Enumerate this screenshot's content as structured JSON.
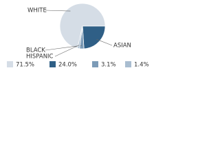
{
  "chart_data": {
    "type": "pie",
    "categories": [
      "WHITE",
      "ASIAN",
      "BLACK",
      "HISPANIC"
    ],
    "values": [
      71.5,
      24.0,
      3.1,
      1.4
    ],
    "value_labels": [
      "71.5%",
      "24.0%",
      "3.1%",
      "1.4%"
    ],
    "colors": [
      "#d5dde6",
      "#2f5f86",
      "#7c9bb7",
      "#a9bdd0"
    ]
  }
}
